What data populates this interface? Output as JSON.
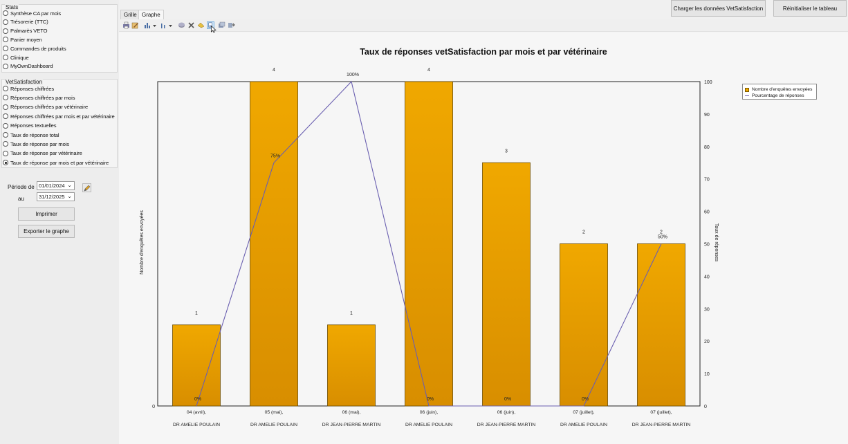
{
  "window": {
    "top_right_corner": ""
  },
  "stats_group": {
    "title": "Stats",
    "items": [
      {
        "label": "Synthèse CA par mois",
        "checked": false
      },
      {
        "label": "Trésorerie (TTC)",
        "checked": false
      },
      {
        "label": "Palmarès VETO",
        "checked": false
      },
      {
        "label": "Panier moyen",
        "checked": false
      },
      {
        "label": "Commandes de produits",
        "checked": false
      },
      {
        "label": "Clinique",
        "checked": false
      },
      {
        "label": "MyOwnDashboard",
        "checked": false
      }
    ]
  },
  "vet_group": {
    "title": "VetSatisfaction",
    "items": [
      {
        "label": "Réponses chiffrées",
        "checked": false
      },
      {
        "label": "Réponses chiffrées par mois",
        "checked": false
      },
      {
        "label": "Réponses chiffrées par vétérinaire",
        "checked": false
      },
      {
        "label": "Réponses chiffrées par mois et par vétérinaire",
        "checked": false
      },
      {
        "label": "Réponses textuelles",
        "checked": false
      },
      {
        "label": "Taux de réponse total",
        "checked": false
      },
      {
        "label": "Taux de réponse par mois",
        "checked": false
      },
      {
        "label": "Taux de réponse par vétérinaire",
        "checked": false
      },
      {
        "label": "Taux de réponse par mois et par vétérinaire",
        "checked": true
      }
    ]
  },
  "period": {
    "from_label": "Période de",
    "from_value": "01/01/2024",
    "to_label": "au",
    "to_value": "31/12/2025"
  },
  "buttons": {
    "print": "Imprimer",
    "export": "Exporter le graphe",
    "load": "Charger les données VetSatisfaction",
    "reset": "Réinitialiser le tableau"
  },
  "tabs": [
    {
      "label": "Grille",
      "active": false
    },
    {
      "label": "Graphe",
      "active": true
    }
  ],
  "toolbar_icons": [
    "print-icon",
    "edit-icon",
    "bar-chart-icon",
    "dropdown-arrow-icon",
    "line-chart-icon",
    "dropdown-arrow-icon",
    "3d-icon",
    "tools-icon",
    "pan-icon",
    "zoom-icon",
    "copy-icon",
    "export-icon"
  ],
  "colors": {
    "bar": "#f0a800",
    "bar_dark": "#d88e00",
    "line": "#6a5fb0"
  },
  "chart_data": {
    "type": "bar",
    "title": "Taux de réponses vetSatisfaction par mois et par vétérinaire",
    "ylabel": "Nombre d'enquêtes envoyées",
    "y2label": "Taux de réponses",
    "ylim": [
      0,
      4
    ],
    "y2lim": [
      0,
      100
    ],
    "y2ticks": [
      0,
      10,
      20,
      30,
      40,
      50,
      60,
      70,
      80,
      90,
      100
    ],
    "y_tick_labels": [
      "0"
    ],
    "categories": [
      [
        "04 (avril),",
        "DR AMELIE POULAIN"
      ],
      [
        "05 (mai),",
        "DR AMELIE POULAIN"
      ],
      [
        "06 (mai),",
        "DR JEAN-PIERRE MARTIN"
      ],
      [
        "06 (juin),",
        "DR AMELIE POULAIN"
      ],
      [
        "06 (juin),",
        "DR JEAN-PIERRE MARTIN"
      ],
      [
        "07 (juillet),",
        "DR AMELIE POULAIN"
      ],
      [
        "07 (juillet),",
        "DR JEAN-PIERRE MARTIN"
      ]
    ],
    "series": [
      {
        "name": "Nombre d'enquêtes envoyées",
        "values": [
          1,
          4,
          1,
          4,
          3,
          2,
          2
        ],
        "labels": [
          "1",
          "4",
          "1",
          "4",
          "3",
          "2",
          "2"
        ]
      },
      {
        "name": "Pourcentage de réponses",
        "values": [
          0,
          75,
          100,
          0,
          0,
          0,
          50
        ],
        "labels": [
          "0%",
          "75%",
          "100%",
          "0%",
          "0%",
          "0%",
          "50%"
        ]
      }
    ],
    "legend": "top-right",
    "grid": false
  }
}
